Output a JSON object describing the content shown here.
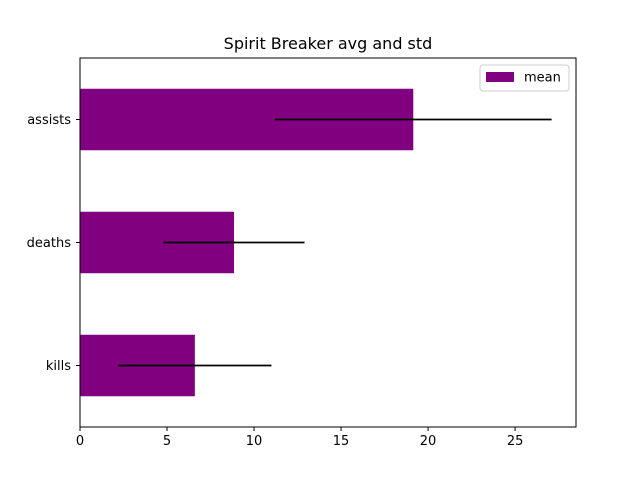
{
  "chart_data": {
    "type": "bar",
    "orientation": "horizontal",
    "title": "Spirit Breaker avg and std",
    "xlabel": "",
    "ylabel": "",
    "categories": [
      "kills",
      "deaths",
      "assists"
    ],
    "series": [
      {
        "name": "mean",
        "values": [
          6.6,
          8.85,
          19.15
        ],
        "error": [
          4.4,
          4.05,
          7.95
        ],
        "color": "#800080"
      }
    ],
    "xlim": [
      0,
      28.5
    ],
    "xticks": [
      0,
      5,
      10,
      15,
      20,
      25
    ],
    "error_bar_color": "#000000",
    "grid": false,
    "legend_position": "top-right"
  }
}
